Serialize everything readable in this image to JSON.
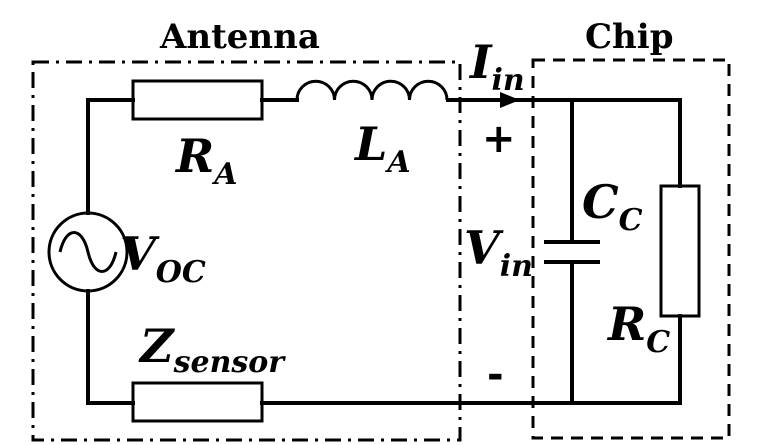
{
  "blocks": {
    "antenna_title": "Antenna",
    "chip_title": "Chip"
  },
  "labels": {
    "current": {
      "main": "I",
      "sub": "in"
    },
    "ra": {
      "main": "R",
      "sub": "A"
    },
    "la": {
      "main": "L",
      "sub": "A"
    },
    "voc": {
      "main": "V",
      "sub": "OC"
    },
    "zsensor": {
      "main": "Z",
      "sub": "sensor"
    },
    "cc": {
      "main": "C",
      "sub": "C"
    },
    "rc": {
      "main": "R",
      "sub": "C"
    },
    "vin": {
      "main": "V",
      "sub": "in"
    },
    "plus": "+",
    "minus": "-"
  },
  "colors": {
    "line": "#000000",
    "zsensor_fill": "#c8ccd4",
    "background": "#ffffff"
  }
}
